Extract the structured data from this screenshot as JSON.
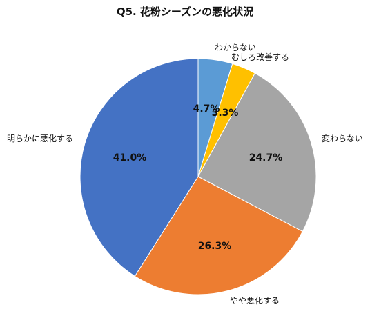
{
  "chart_data": {
    "type": "pie",
    "title": "Q5. 花粉シーズンの悪化状況",
    "categories": [
      "わからない",
      "むしろ改善する",
      "変わらない",
      "やや悪化する",
      "明らかに悪化する"
    ],
    "values": [
      4.7,
      3.3,
      24.7,
      26.3,
      41.0
    ],
    "value_labels": [
      "4.7%",
      "3.3%",
      "24.7%",
      "26.3%",
      "41.0%"
    ],
    "colors": [
      "#5B9BD5",
      "#FFC000",
      "#A5A5A5",
      "#ED7D31",
      "#4472C4"
    ],
    "start": "12 o'clock",
    "direction": "clockwise",
    "legend": "none"
  }
}
